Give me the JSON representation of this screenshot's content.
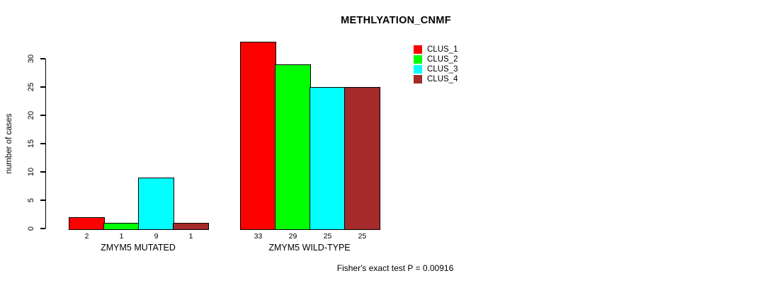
{
  "title": "METHLYATION_CNMF",
  "chart_data": {
    "type": "bar",
    "title": "METHLYATION_CNMF",
    "ylabel": "number of cases",
    "xlabel": "",
    "groups": [
      "ZMYM5 MUTATED",
      "ZMYM5 WILD-TYPE"
    ],
    "series": [
      {
        "name": "CLUS_1",
        "color": "#ff0000",
        "values": [
          2,
          33
        ]
      },
      {
        "name": "CLUS_2",
        "color": "#00ff00",
        "values": [
          1,
          29
        ]
      },
      {
        "name": "CLUS_3",
        "color": "#00ffff",
        "values": [
          9,
          25
        ]
      },
      {
        "name": "CLUS_4",
        "color": "#a52a2a",
        "values": [
          1,
          25
        ]
      }
    ],
    "yticks": [
      0,
      5,
      10,
      15,
      20,
      25,
      30
    ],
    "ylim": [
      0,
      33
    ],
    "grid": false,
    "bar_value_labels": [
      [
        2,
        1,
        9,
        1
      ],
      [
        33,
        29,
        25,
        25
      ]
    ],
    "legend_position": "top-right",
    "annotation": "Fisher's exact test P = 0.00916"
  }
}
